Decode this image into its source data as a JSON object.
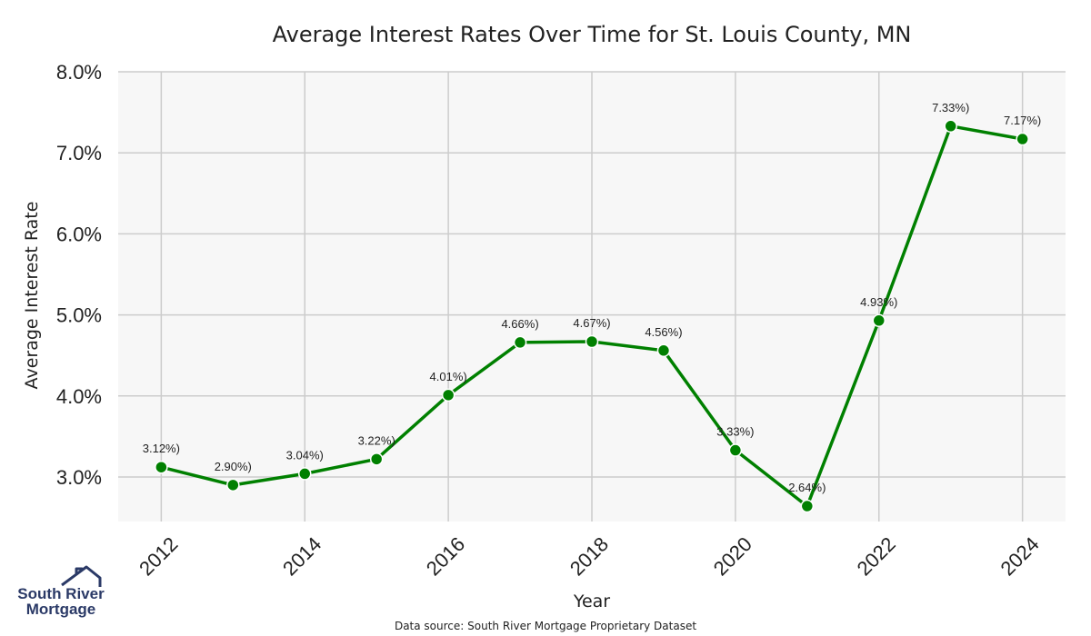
{
  "chart_data": {
    "type": "line",
    "title": "Average Interest Rates Over Time for St. Louis County, MN",
    "xlabel": "Year",
    "ylabel": "Average Interest Rate",
    "x": [
      2012,
      2013,
      2014,
      2015,
      2016,
      2017,
      2018,
      2019,
      2020,
      2021,
      2022,
      2023,
      2024
    ],
    "values": [
      3.12,
      2.9,
      3.04,
      3.22,
      4.01,
      4.66,
      4.67,
      4.56,
      3.33,
      2.64,
      4.93,
      7.33,
      7.17
    ],
    "data_labels": [
      "3.12%)",
      "2.90%)",
      "3.04%)",
      "3.22%)",
      "4.01%)",
      "4.66%)",
      "4.67%)",
      "4.56%)",
      "3.33%)",
      "2.64%)",
      "4.93%)",
      "7.33%)",
      "7.17%)"
    ],
    "x_ticks": [
      "2012",
      "2014",
      "2016",
      "2018",
      "2020",
      "2022",
      "2024"
    ],
    "y_ticks": [
      "3.0%",
      "4.0%",
      "5.0%",
      "6.0%",
      "7.0%",
      "8.0%"
    ],
    "xlim": [
      2011.4,
      2024.6
    ],
    "ylim": [
      2.45,
      8.0
    ],
    "grid": true,
    "line_color": "#008000",
    "background_color": "#f7f7f7"
  },
  "source_text": "Data source: South River Mortgage Proprietary Dataset",
  "logo": {
    "line1": "South River",
    "line2": "Mortgage",
    "color": "#2b3a67"
  }
}
